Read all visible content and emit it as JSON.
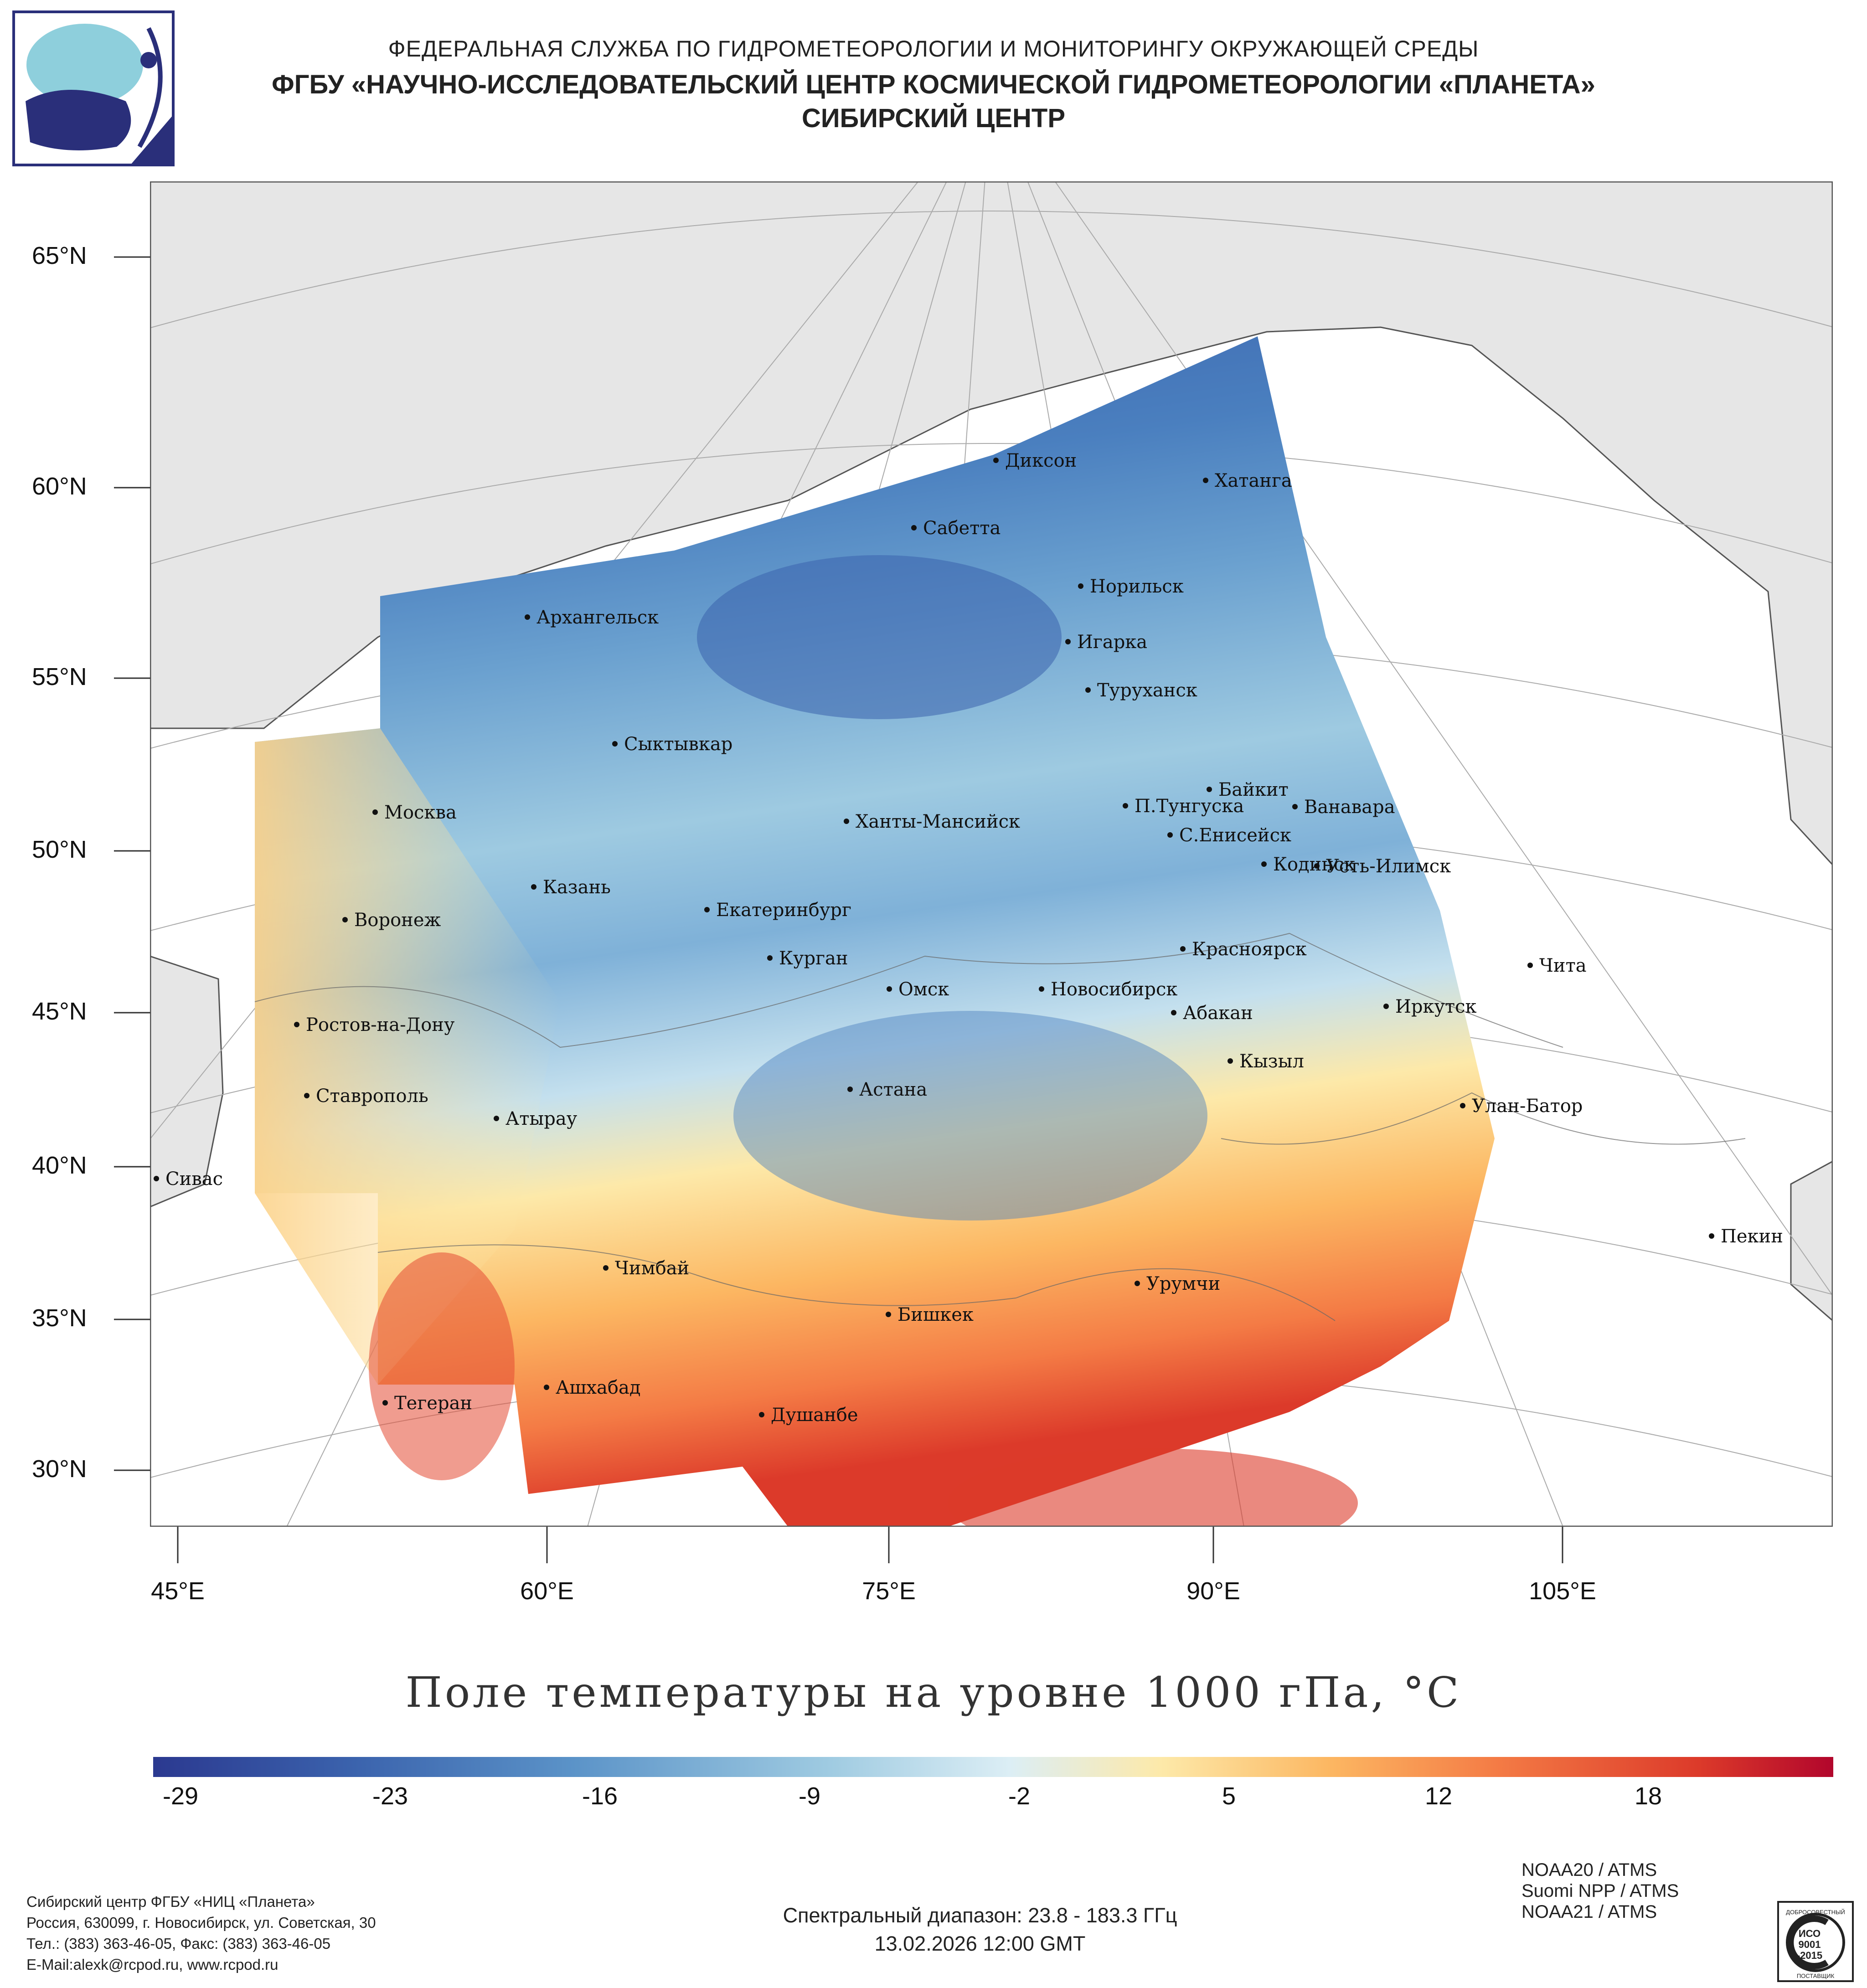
{
  "header": {
    "line1": "ФЕДЕРАЛЬНАЯ СЛУЖБА ПО ГИДРОМЕТЕОРОЛОГИИ И МОНИТОРИНГУ ОКРУЖАЮЩЕЙ СРЕДЫ",
    "line2": "ФГБУ «НАУЧНО-ИССЛЕДОВАТЕЛЬСКИЙ ЦЕНТР КОСМИЧЕСКОЙ ГИДРОМЕТЕОРОЛОГИИ «ПЛАНЕТА»",
    "line3": "СИБИРСКИЙ ЦЕНТР"
  },
  "map": {
    "lat_labels": [
      "65°N",
      "60°N",
      "55°N",
      "50°N",
      "45°N",
      "40°N",
      "35°N",
      "30°N"
    ],
    "lon_labels": [
      "45°E",
      "60°E",
      "75°E",
      "90°E",
      "105°E"
    ],
    "cities": [
      "Диксон",
      "Хатанга",
      "Сабетта",
      "Норильск",
      "Архангельск",
      "Игарка",
      "Туруханск",
      "Сыктывкар",
      "Байкит",
      "Москва",
      "П.Тунгуска",
      "Ванавара",
      "Ханты-Мансийск",
      "С.Енисейск",
      "Кодинск",
      "Усть-Илимск",
      "Казань",
      "Екатеринбург",
      "Воронеж",
      "Красноярск",
      "Курган",
      "Чита",
      "Омск",
      "Новосибирск",
      "Иркутск",
      "Абакан",
      "Ростов-на-Дону",
      "Кызыл",
      "Астана",
      "Ставрополь",
      "Улан-Батор",
      "Атырау",
      "Сивас",
      "Пекин",
      "Чимбай",
      "Урумчи",
      "Бишкек",
      "Ашхабад",
      "Душанбе",
      "Тегеран"
    ]
  },
  "title": "Поле температуры на уровне 1000 гПа, °С",
  "colorbar": {
    "ticks": [
      "-29",
      "-23",
      "-16",
      "-9",
      "-2",
      "5",
      "12",
      "18"
    ],
    "colors": [
      "#2b3990",
      "#3b63ad",
      "#5b93c8",
      "#9ecae1",
      "#dceef5",
      "#fde9a9",
      "#fcb762",
      "#f47b45",
      "#dc3a2a",
      "#b2062c"
    ]
  },
  "footer": {
    "org_line1": "Сибирский центр ФГБУ «НИЦ «Планета»",
    "org_line2": "Россия, 630099, г. Новосибирск, ул. Советская, 30",
    "org_line3": "Тел.: (383) 363-46-05, Факс: (383) 363-46-05",
    "org_line4": "E-Mail:alexk@rcpod.ru, www.rcpod.ru",
    "spectral": "Спектральный диапазон: 23.8 - 183.3 ГГц",
    "datetime": "13.02.2026 12:00 GMT",
    "sat1": "NOAA20 / ATMS",
    "sat2": "Suomi NPP / ATMS",
    "sat3": "NOAA21 / ATMS",
    "iso_top": "ДОБРОСОВЕСТНЫЙ",
    "iso_mid1": "ИСО",
    "iso_mid2": "9001",
    "iso_mid3": "-2015",
    "iso_bottom": "ПОСТАВЩИК"
  }
}
